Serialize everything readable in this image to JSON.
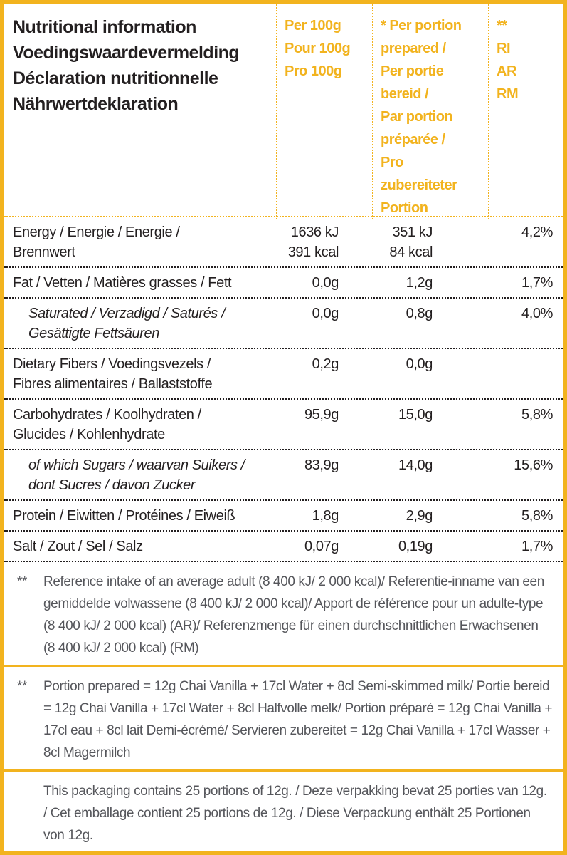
{
  "colors": {
    "accent": "#F2B31E",
    "text": "#231F20",
    "footnote_text": "#55565B",
    "background": "#FFFFFF"
  },
  "header": {
    "title_lines": [
      "Nutritional information",
      "Voedingswaardevermelding",
      "Déclaration nutritionnelle",
      "Nährwertdeklaration"
    ],
    "columns": {
      "per_100g_lines": [
        "Per 100g",
        "Pour 100g",
        "Pro 100g"
      ],
      "per_portion_lines": [
        "* Per portion",
        "prepared /",
        "Per portie",
        "bereid /",
        "Par portion",
        "préparée /",
        "Pro",
        "zubereiteter",
        "Portion"
      ],
      "reference_intake_lines": [
        "**",
        "RI",
        "AR",
        "RM"
      ]
    }
  },
  "table": {
    "rows": [
      {
        "label": [
          "Energy / Energie / Energie /",
          "Brennwert"
        ],
        "per_100g": [
          "1636 kJ",
          "391 kcal"
        ],
        "per_portion": [
          "351 kJ",
          "84 kcal"
        ],
        "reference_intake": "4,2%",
        "italic": false
      },
      {
        "label": [
          "Fat / Vetten / Matières grasses / Fett"
        ],
        "per_100g": "0,0g",
        "per_portion": "1,2g",
        "reference_intake": "1,7%",
        "italic": false
      },
      {
        "label": [
          "Saturated / Verzadigd / Saturés /",
          "Gesättigte Fettsäuren"
        ],
        "per_100g": "0,0g",
        "per_portion": "0,8g",
        "reference_intake": "4,0%",
        "italic": true
      },
      {
        "label": [
          "Dietary Fibers / Voedingsvezels /",
          "Fibres alimentaires / Ballaststoffe"
        ],
        "per_100g": "0,2g",
        "per_portion": "0,0g",
        "reference_intake": "",
        "italic": false
      },
      {
        "label": [
          "Carbohydrates / Koolhydraten /",
          "Glucides / Kohlenhydrate"
        ],
        "per_100g": "95,9g",
        "per_portion": "15,0g",
        "reference_intake": "5,8%",
        "italic": false
      },
      {
        "label": [
          "of which Sugars / waarvan Suikers /",
          "dont Sucres / davon Zucker"
        ],
        "per_100g": "83,9g",
        "per_portion": "14,0g",
        "reference_intake": "15,6%",
        "italic": true
      },
      {
        "label": [
          "Protein / Eiwitten / Protéines / Eiweiß"
        ],
        "per_100g": "1,8g",
        "per_portion": "2,9g",
        "reference_intake": "5,8%",
        "italic": false
      },
      {
        "label": [
          "Salt / Zout / Sel / Salz"
        ],
        "per_100g": "0,07g",
        "per_portion": "0,19g",
        "reference_intake": "1,7%",
        "italic": false
      }
    ]
  },
  "footnotes": [
    {
      "marker": "**",
      "text": "Reference intake of an average adult (8 400 kJ/ 2 000 kcal)/ Referentie-inname van een gemiddelde volwassene (8 400 kJ/ 2 000 kcal)/ Apport de référence pour un adulte-type (8 400 kJ/ 2 000 kcal) (AR)/ Referenzmenge für einen durchschnittlichen Erwachsenen (8 400 kJ/ 2 000 kcal) (RM)"
    },
    {
      "marker": "**",
      "text": "Portion prepared = 12g Chai Vanilla + 17cl Water + 8cl Semi-skimmed milk/ Portie bereid = 12g Chai Vanilla + 17cl Water + 8cl Halfvolle melk/ Portion préparé = 12g Chai Vanilla + 17cl eau + 8cl lait Demi-écrémé/ Servieren zubereitet = 12g Chai Vanilla + 17cl Wasser + 8cl Magermilch"
    },
    {
      "marker": "",
      "text": "This packaging contains 25 portions of 12g. / Deze verpakking bevat 25 porties van 12g. / Cet emballage contient 25 portions de 12g. / Diese Verpackung enthält 25 Portionen von 12g."
    }
  ]
}
